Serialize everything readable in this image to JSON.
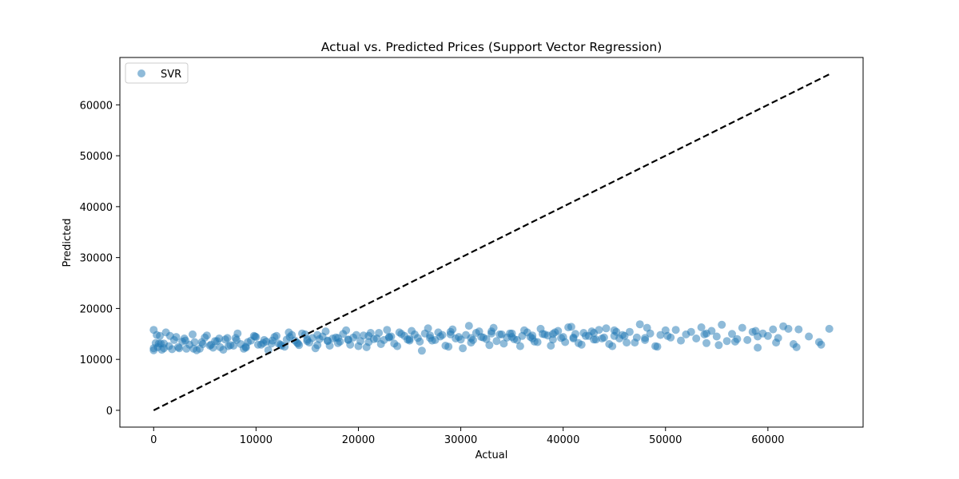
{
  "chart_data": {
    "type": "scatter",
    "title": "Actual vs. Predicted Prices (Support Vector Regression)",
    "xlabel": "Actual",
    "ylabel": "Predicted",
    "xlim": [
      -3300,
      69300
    ],
    "ylim": [
      -3300,
      69300
    ],
    "xticks": [
      0,
      10000,
      20000,
      30000,
      40000,
      50000,
      60000
    ],
    "yticks": [
      0,
      10000,
      20000,
      30000,
      40000,
      50000,
      60000
    ],
    "grid": false,
    "legend": {
      "position": "top-left",
      "entries": [
        "SVR"
      ]
    },
    "reference_line": {
      "style": "dashed",
      "color": "#000000",
      "points": [
        [
          0,
          0
        ],
        [
          66000,
          66000
        ]
      ]
    },
    "series": [
      {
        "name": "SVR",
        "color": "#1f77b4",
        "alpha": 0.5,
        "x": [
          0,
          200,
          400,
          600,
          800,
          1000,
          1500,
          2000,
          2500,
          3000,
          3500,
          4000,
          4500,
          5000,
          5500,
          6000,
          6500,
          7000,
          7500,
          8000,
          8500,
          9000,
          9500,
          10000,
          10500,
          11000,
          11500,
          12000,
          12500,
          13000,
          13500,
          14000,
          14500,
          15000,
          15500,
          16000,
          16500,
          17000,
          17500,
          18000,
          18500,
          19000,
          19500,
          20000,
          20500,
          21000,
          21500,
          22000,
          22500,
          23000,
          23500,
          24000,
          24500,
          25000,
          25500,
          26000,
          26500,
          27000,
          27500,
          28000,
          28500,
          29000,
          29500,
          30000,
          30500,
          31000,
          31500,
          32000,
          32500,
          33000,
          33500,
          34000,
          34500,
          35000,
          35500,
          36000,
          36500,
          37000,
          37500,
          38000,
          38500,
          39000,
          39500,
          40000,
          40500,
          41000,
          41500,
          42000,
          42500,
          43000,
          43500,
          44000,
          44500,
          45000,
          45500,
          46000,
          46500,
          47000,
          47500,
          48000,
          48500,
          49000,
          49500,
          50000,
          50500,
          51000,
          51500,
          52000,
          52500,
          53000,
          53500,
          54000,
          54500,
          55000,
          55500,
          56000,
          56500,
          57000,
          57500,
          58000,
          58500,
          59000,
          59500,
          60000,
          60500,
          61000,
          61500,
          62000,
          62500,
          63000,
          64000,
          65000,
          66000,
          0,
          300,
          700,
          1200,
          1800,
          2200,
          2800,
          3200,
          3800,
          4200,
          4800,
          5200,
          5800,
          6200,
          6800,
          7200,
          7800,
          8200,
          8800,
          9200,
          9800,
          10200,
          10800,
          11200,
          11800,
          12200,
          12800,
          13200,
          13800,
          14200,
          14800,
          15200,
          15800,
          16200,
          16800,
          17200,
          17800,
          18200,
          18800,
          19200,
          19800,
          20200,
          20800,
          21200,
          21800,
          22200,
          22800,
          23200,
          23800,
          24200,
          24800,
          25200,
          25800,
          26200,
          26800,
          27200,
          27800,
          28200,
          28800,
          29200,
          29800,
          30200,
          30800,
          31200,
          31800,
          32200,
          32800,
          33200,
          33800,
          34200,
          34800,
          35200,
          35800,
          36200,
          36800,
          37200,
          37800,
          38200,
          38800,
          39200,
          39800,
          40200,
          40800,
          41200,
          41800,
          42200,
          42800,
          43200,
          43800,
          44200,
          44800,
          45200,
          45800,
          46200,
          47200,
          48200,
          49200,
          50200,
          53800,
          55200,
          56800,
          58800,
          60800,
          62800,
          65200,
          0,
          500,
          1000,
          1600,
          2400,
          3100,
          3900,
          4700,
          5600,
          6400,
          7300,
          8100,
          9000,
          9900,
          10700,
          11600,
          12400,
          13300,
          14100,
          15000,
          16000,
          17000,
          18000,
          19000,
          21000,
          23000,
          25000,
          27000,
          29000,
          31000,
          33000,
          35000,
          37000,
          39000,
          41000,
          43000,
          45000,
          48000,
          54000,
          59000
        ],
        "y": [
          15800,
          13200,
          12400,
          14600,
          11900,
          13100,
          12600,
          13800,
          12200,
          14100,
          12900,
          13400,
          12100,
          14300,
          12700,
          13600,
          12400,
          13900,
          12800,
          14200,
          13000,
          12500,
          13700,
          14400,
          12900,
          13500,
          13100,
          14600,
          12700,
          13900,
          14800,
          13300,
          15100,
          13600,
          14200,
          12800,
          14500,
          13700,
          14100,
          13200,
          15000,
          13900,
          14300,
          12600,
          14700,
          13400,
          14000,
          15200,
          13800,
          14400,
          13100,
          15300,
          14600,
          13700,
          14900,
          13500,
          15100,
          14200,
          13800,
          14500,
          12700,
          15400,
          14100,
          13900,
          14800,
          13300,
          15200,
          14400,
          14000,
          15500,
          13600,
          14900,
          14300,
          15100,
          13800,
          14600,
          15300,
          14100,
          13400,
          15000,
          14700,
          13900,
          15600,
          14400,
          16300,
          14100,
          13200,
          15200,
          14600,
          13900,
          15800,
          14300,
          13000,
          15700,
          14100,
          14600,
          15400,
          13300,
          16900,
          14200,
          15100,
          12600,
          14800,
          15700,
          14300,
          15800,
          13700,
          14900,
          15400,
          14100,
          16300,
          13200,
          15600,
          14500,
          16800,
          13600,
          15000,
          14000,
          16200,
          13800,
          15400,
          12300,
          15100,
          14600,
          15900,
          14200,
          16500,
          16000,
          13000,
          15900,
          14500,
          13400,
          16000,
          12200,
          14800,
          13100,
          15300,
          12000,
          14400,
          13500,
          12100,
          14900,
          11800,
          13000,
          14700,
          12300,
          13600,
          11900,
          14200,
          12700,
          15100,
          12100,
          13400,
          14600,
          12900,
          13800,
          11800,
          14400,
          13100,
          12500,
          15300,
          13700,
          12800,
          14900,
          13300,
          12200,
          14000,
          15500,
          12700,
          14300,
          13500,
          15700,
          12900,
          14800,
          13600,
          12400,
          15200,
          14100,
          13000,
          15800,
          14500,
          12600,
          15000,
          13900,
          15600,
          14200,
          11700,
          16100,
          13700,
          15300,
          14800,
          12500,
          15900,
          14400,
          12200,
          16600,
          13800,
          15500,
          14300,
          12800,
          16200,
          14900,
          13100,
          15100,
          14000,
          12600,
          15700,
          14400,
          13500,
          16000,
          14900,
          12700,
          15300,
          14200,
          13400,
          16400,
          15000,
          12900,
          14600,
          15500,
          13900,
          14100,
          16100,
          12600,
          15400,
          14800,
          13300,
          14300,
          16200,
          12500,
          14600,
          14900,
          12800,
          13500,
          15600,
          13300,
          12400,
          12900,
          11800,
          13100,
          12200,
          14600,
          12400,
          13700,
          12100,
          13400,
          12900,
          14100,
          12600,
          13800,
          12300,
          14500,
          13200,
          13700,
          12900,
          14400,
          13100,
          13900,
          14800,
          13600,
          14200,
          13800,
          14600,
          14300,
          14000,
          14700,
          14900,
          14200,
          15100,
          14400,
          14700,
          15000,
          14300,
          15200,
          14600,
          13800,
          15100,
          14500
        ]
      }
    ]
  }
}
